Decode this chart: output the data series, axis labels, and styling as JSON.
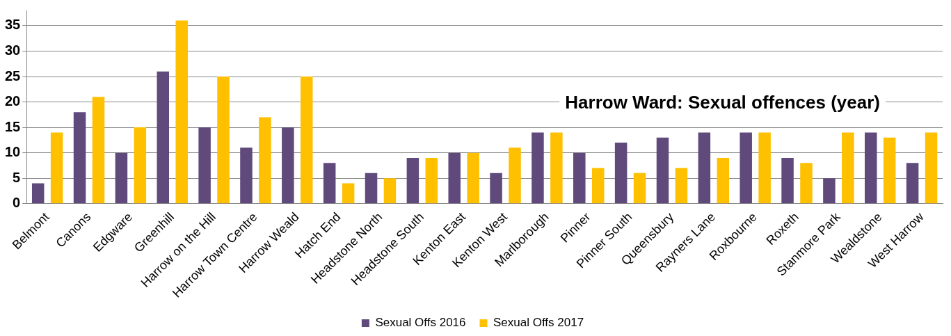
{
  "chart_data": {
    "type": "bar",
    "title": "Harrow Ward: Sexual offences (year)",
    "categories": [
      "Belmont",
      "Canons",
      "Edgware",
      "Greenhill",
      "Harrow on the Hill",
      "Harrow Town Centre",
      "Harrow Weald",
      "Hatch End",
      "Headstone North",
      "Headstone South",
      "Kenton East",
      "Kenton West",
      "Marlborough",
      "Pinner",
      "Pinner South",
      "Queensbury",
      "Rayners Lane",
      "Roxbourne",
      "Roxeth",
      "Stanmore Park",
      "Wealdstone",
      "West Harrow"
    ],
    "series": [
      {
        "name": "Sexual Offs 2016",
        "color": "#604a7b",
        "values": [
          4,
          18,
          10,
          26,
          15,
          11,
          15,
          8,
          6,
          9,
          10,
          6,
          14,
          10,
          12,
          13,
          14,
          14,
          9,
          5,
          14,
          8
        ]
      },
      {
        "name": "Sexual Offs 2017",
        "color": "#ffc000",
        "values": [
          14,
          21,
          15,
          36,
          25,
          17,
          25,
          4,
          5,
          9,
          10,
          11,
          14,
          7,
          6,
          7,
          9,
          14,
          8,
          14,
          13,
          14
        ]
      }
    ],
    "ylim": [
      0,
      38
    ],
    "yticks": [
      0,
      5,
      10,
      15,
      20,
      25,
      30,
      35
    ],
    "grid": "y",
    "legend": "bottom"
  }
}
